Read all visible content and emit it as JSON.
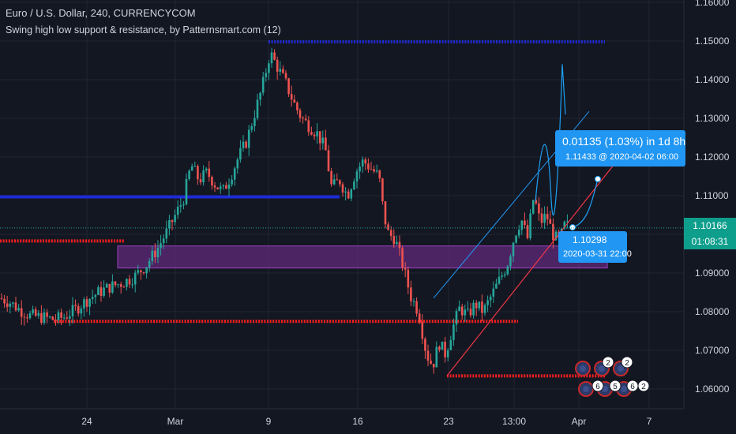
{
  "header": {
    "title": "Euro / U.S. Dollar, 240, CURRENCYCOM",
    "indicator": "Swing high low support & resistance, by Patternsmart.com (12)"
  },
  "chart_data": {
    "type": "candlestick",
    "symbol": "EURUSD",
    "interval": "240",
    "x_labels": [
      "24",
      "Mar",
      "9",
      "16",
      "23",
      "13:00",
      "Apr",
      "7"
    ],
    "y_ticks": [
      "1.16000",
      "1.15000",
      "1.14000",
      "1.13000",
      "1.12000",
      "1.11000",
      "1.10000",
      "1.09000",
      "1.08000",
      "1.07000",
      "1.06000"
    ],
    "y_tick_values": [
      1.16,
      1.15,
      1.14,
      1.13,
      1.12,
      1.11,
      1.1,
      1.09,
      1.08,
      1.07,
      1.06
    ],
    "ylim": [
      1.0538,
      1.1605
    ],
    "grid": true,
    "path_points": [
      [
        0,
        1.0835
      ],
      [
        12,
        1.0825
      ],
      [
        25,
        1.0805
      ],
      [
        38,
        1.079
      ],
      [
        55,
        1.0785
      ],
      [
        68,
        1.078
      ],
      [
        80,
        1.0785
      ],
      [
        95,
        1.0805
      ],
      [
        110,
        1.083
      ],
      [
        125,
        1.085
      ],
      [
        140,
        1.0865
      ],
      [
        155,
        1.0875
      ],
      [
        170,
        1.089
      ],
      [
        185,
        1.092
      ],
      [
        200,
        1.0965
      ],
      [
        212,
        1.101
      ],
      [
        222,
        1.105
      ],
      [
        232,
        1.109
      ],
      [
        242,
        1.118
      ],
      [
        252,
        1.114
      ],
      [
        262,
        1.116
      ],
      [
        272,
        1.113
      ],
      [
        282,
        1.111
      ],
      [
        292,
        1.115
      ],
      [
        302,
        1.12
      ],
      [
        312,
        1.124
      ],
      [
        322,
        1.131
      ],
      [
        332,
        1.138
      ],
      [
        342,
        1.147
      ],
      [
        352,
        1.143
      ],
      [
        362,
        1.139
      ],
      [
        372,
        1.134
      ],
      [
        382,
        1.13
      ],
      [
        392,
        1.128
      ],
      [
        402,
        1.126
      ],
      [
        412,
        1.122
      ],
      [
        420,
        1.112
      ],
      [
        430,
        1.114
      ],
      [
        440,
        1.11
      ],
      [
        450,
        1.116
      ],
      [
        460,
        1.119
      ],
      [
        470,
        1.117
      ],
      [
        480,
        1.115
      ],
      [
        486,
        1.105
      ],
      [
        492,
        1.1
      ],
      [
        500,
        1.099
      ],
      [
        510,
        1.092
      ],
      [
        520,
        1.084
      ],
      [
        530,
        1.08
      ],
      [
        540,
        1.069
      ],
      [
        548,
        1.066
      ],
      [
        556,
        1.072
      ],
      [
        564,
        1.069
      ],
      [
        572,
        1.075
      ],
      [
        582,
        1.081
      ],
      [
        592,
        1.079
      ],
      [
        602,
        1.082
      ],
      [
        612,
        1.08
      ],
      [
        622,
        1.084
      ],
      [
        632,
        1.088
      ],
      [
        642,
        1.092
      ],
      [
        652,
        1.1
      ],
      [
        660,
        1.104
      ],
      [
        668,
        1.099
      ],
      [
        676,
        1.11
      ],
      [
        684,
        1.103
      ],
      [
        692,
        1.105
      ],
      [
        700,
        1.1
      ],
      [
        708,
        1.098
      ],
      [
        716,
        1.103
      ],
      [
        722,
        1.101
      ]
    ],
    "current_price": "1.10166",
    "countdown": "01:08:31",
    "support_resistance": [
      {
        "color": "#1e2bd6",
        "style": "dotted",
        "x1": "9 Mar",
        "x2": "Apr",
        "value": 1.1498
      },
      {
        "color": "#1e2bd6",
        "style": "solid",
        "x1": "start",
        "x2": "16 Mar",
        "value": 1.1097
      },
      {
        "color": "#ff1e1e",
        "style": "dotted",
        "x1": "start",
        "x2": "24 Feb",
        "value": 1.0983
      },
      {
        "color": "#ff1e1e",
        "style": "dotted",
        "x1": "22 Feb",
        "x2": "Mar 30",
        "value": 1.0775
      },
      {
        "color": "#ff1e1e",
        "style": "dotted",
        "x1": "23 Mar",
        "x2": "Apr",
        "value": 1.0634
      }
    ],
    "zone": {
      "y_top": 1.097,
      "y_bottom": 1.0913,
      "color": "#7b2f9b"
    },
    "measure": {
      "change": "0.01135 (1.03%) in 1d 8h",
      "target": "1.11433 @ 2020-04-02 06:00"
    },
    "current_tag": {
      "price": "1.10298",
      "time": "2020-03-31 22:00"
    },
    "event_badges": [
      "2",
      "2",
      "6",
      "5",
      "6",
      "2"
    ]
  },
  "colors": {
    "background": "#131722",
    "grid": "#1f2433",
    "up": "#26a69a",
    "down": "#ef5350",
    "accent": "#2196f3",
    "projection": "#1da1f2"
  }
}
